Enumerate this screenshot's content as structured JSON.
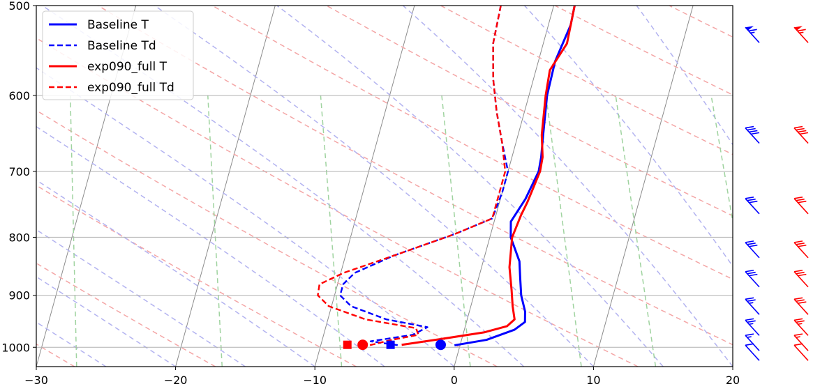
{
  "chart_data": {
    "type": "line",
    "title": "",
    "xlabel": "",
    "ylabel": "",
    "xlim": [
      -30,
      20
    ],
    "ylim": [
      1040,
      500
    ],
    "y_scale": "log",
    "x_ticks": [
      -30,
      -20,
      -10,
      0,
      10,
      20
    ],
    "x_tick_labels": [
      "−30",
      "−20",
      "−10",
      "0",
      "10",
      "20"
    ],
    "y_ticks": [
      500,
      600,
      700,
      800,
      900,
      1000
    ],
    "y_tick_labels": [
      "500",
      "600",
      "700",
      "800",
      "900",
      "1000"
    ],
    "grid": true,
    "legend_position": "top-left",
    "background_lines": {
      "dry_adiabats_color": "#f4a6a6",
      "moist_adiabats_color": "#b3b3f0",
      "mixing_ratio_color": "#9fd39f",
      "isotherms_color": "#8c8c8c"
    },
    "series": [
      {
        "name": "Baseline T",
        "color": "#0000ff",
        "dash": "solid",
        "points": [
          [
            1.5,
            500
          ],
          [
            1.6,
            520
          ],
          [
            1.2,
            560
          ],
          [
            1.3,
            600
          ],
          [
            1.8,
            650
          ],
          [
            2.1,
            680
          ],
          [
            2.2,
            700
          ],
          [
            1.8,
            740
          ],
          [
            1.2,
            775
          ],
          [
            1.5,
            800
          ],
          [
            2.6,
            840
          ],
          [
            3.0,
            870
          ],
          [
            3.4,
            900
          ],
          [
            4.0,
            930
          ],
          [
            4.2,
            950
          ],
          [
            3.6,
            965
          ],
          [
            1.8,
            985
          ],
          [
            -0.4,
            996
          ]
        ]
      },
      {
        "name": "Baseline Td",
        "color": "#0000ff",
        "dash": "dashed",
        "points": [
          [
            -3.8,
            500
          ],
          [
            -3.6,
            540
          ],
          [
            -2.9,
            580
          ],
          [
            -2.0,
            620
          ],
          [
            -1.0,
            660
          ],
          [
            0.0,
            700
          ],
          [
            0.0,
            730
          ],
          [
            -0.2,
            770
          ],
          [
            -2.6,
            795
          ],
          [
            -6.5,
            830
          ],
          [
            -9.0,
            860
          ],
          [
            -9.6,
            880
          ],
          [
            -9.6,
            900
          ],
          [
            -8.6,
            920
          ],
          [
            -5.8,
            945
          ],
          [
            -2.7,
            960
          ],
          [
            -3.6,
            975
          ],
          [
            -6.5,
            988
          ],
          [
            -4.4,
            996
          ]
        ]
      },
      {
        "name": "exp090_full T",
        "color": "#ff0000",
        "dash": "solid",
        "points": [
          [
            1.5,
            500
          ],
          [
            1.7,
            540
          ],
          [
            1.0,
            570
          ],
          [
            1.2,
            600
          ],
          [
            1.7,
            650
          ],
          [
            2.2,
            680
          ],
          [
            2.3,
            700
          ],
          [
            2.0,
            745
          ],
          [
            1.8,
            765
          ],
          [
            1.6,
            800
          ],
          [
            2.0,
            850
          ],
          [
            2.6,
            890
          ],
          [
            3.0,
            920
          ],
          [
            3.4,
            945
          ],
          [
            3.0,
            958
          ],
          [
            1.5,
            970
          ],
          [
            -1.4,
            983
          ],
          [
            -4.2,
            995
          ]
        ]
      },
      {
        "name": "exp090_full Td",
        "color": "#ff0000",
        "dash": "dashed",
        "points": [
          [
            -3.8,
            500
          ],
          [
            -3.6,
            540
          ],
          [
            -2.9,
            580
          ],
          [
            -2.0,
            620
          ],
          [
            -1.0,
            660
          ],
          [
            -0.2,
            700
          ],
          [
            -0.2,
            730
          ],
          [
            -0.2,
            770
          ],
          [
            -2.6,
            795
          ],
          [
            -6.5,
            830
          ],
          [
            -9.8,
            860
          ],
          [
            -11.3,
            880
          ],
          [
            -11.2,
            900
          ],
          [
            -10.2,
            920
          ],
          [
            -7.3,
            945
          ],
          [
            -3.5,
            962
          ],
          [
            -3.2,
            975
          ],
          [
            -5.0,
            985
          ],
          [
            -6.5,
            996
          ]
        ]
      }
    ],
    "markers": [
      {
        "series": "Baseline T",
        "shape": "circle",
        "x": -1.4,
        "p": 995,
        "color": "#0000ff"
      },
      {
        "series": "Baseline Td",
        "shape": "square",
        "x": -5.0,
        "p": 995,
        "color": "#0000ff"
      },
      {
        "series": "exp090_full T",
        "shape": "circle",
        "x": -7.0,
        "p": 995,
        "color": "#ff0000"
      },
      {
        "series": "exp090_full Td",
        "shape": "square",
        "x": -8.1,
        "p": 995,
        "color": "#ff0000"
      }
    ],
    "wind_barbs": {
      "pressures": [
        530,
        650,
        750,
        820,
        870,
        920,
        960,
        990,
        1010
      ],
      "baseline": [
        {
          "p": 530,
          "kt": 65
        },
        {
          "p": 650,
          "kt": 40
        },
        {
          "p": 750,
          "kt": 30
        },
        {
          "p": 820,
          "kt": 30
        },
        {
          "p": 870,
          "kt": 30
        },
        {
          "p": 920,
          "kt": 25
        },
        {
          "p": 960,
          "kt": 25
        },
        {
          "p": 990,
          "kt": 15
        },
        {
          "p": 1010,
          "kt": 10
        }
      ],
      "exp090_full": [
        {
          "p": 530,
          "kt": 65
        },
        {
          "p": 650,
          "kt": 40
        },
        {
          "p": 750,
          "kt": 30
        },
        {
          "p": 820,
          "kt": 30
        },
        {
          "p": 870,
          "kt": 30
        },
        {
          "p": 920,
          "kt": 30
        },
        {
          "p": 960,
          "kt": 25
        },
        {
          "p": 990,
          "kt": 15
        },
        {
          "p": 1010,
          "kt": 10
        }
      ]
    }
  }
}
